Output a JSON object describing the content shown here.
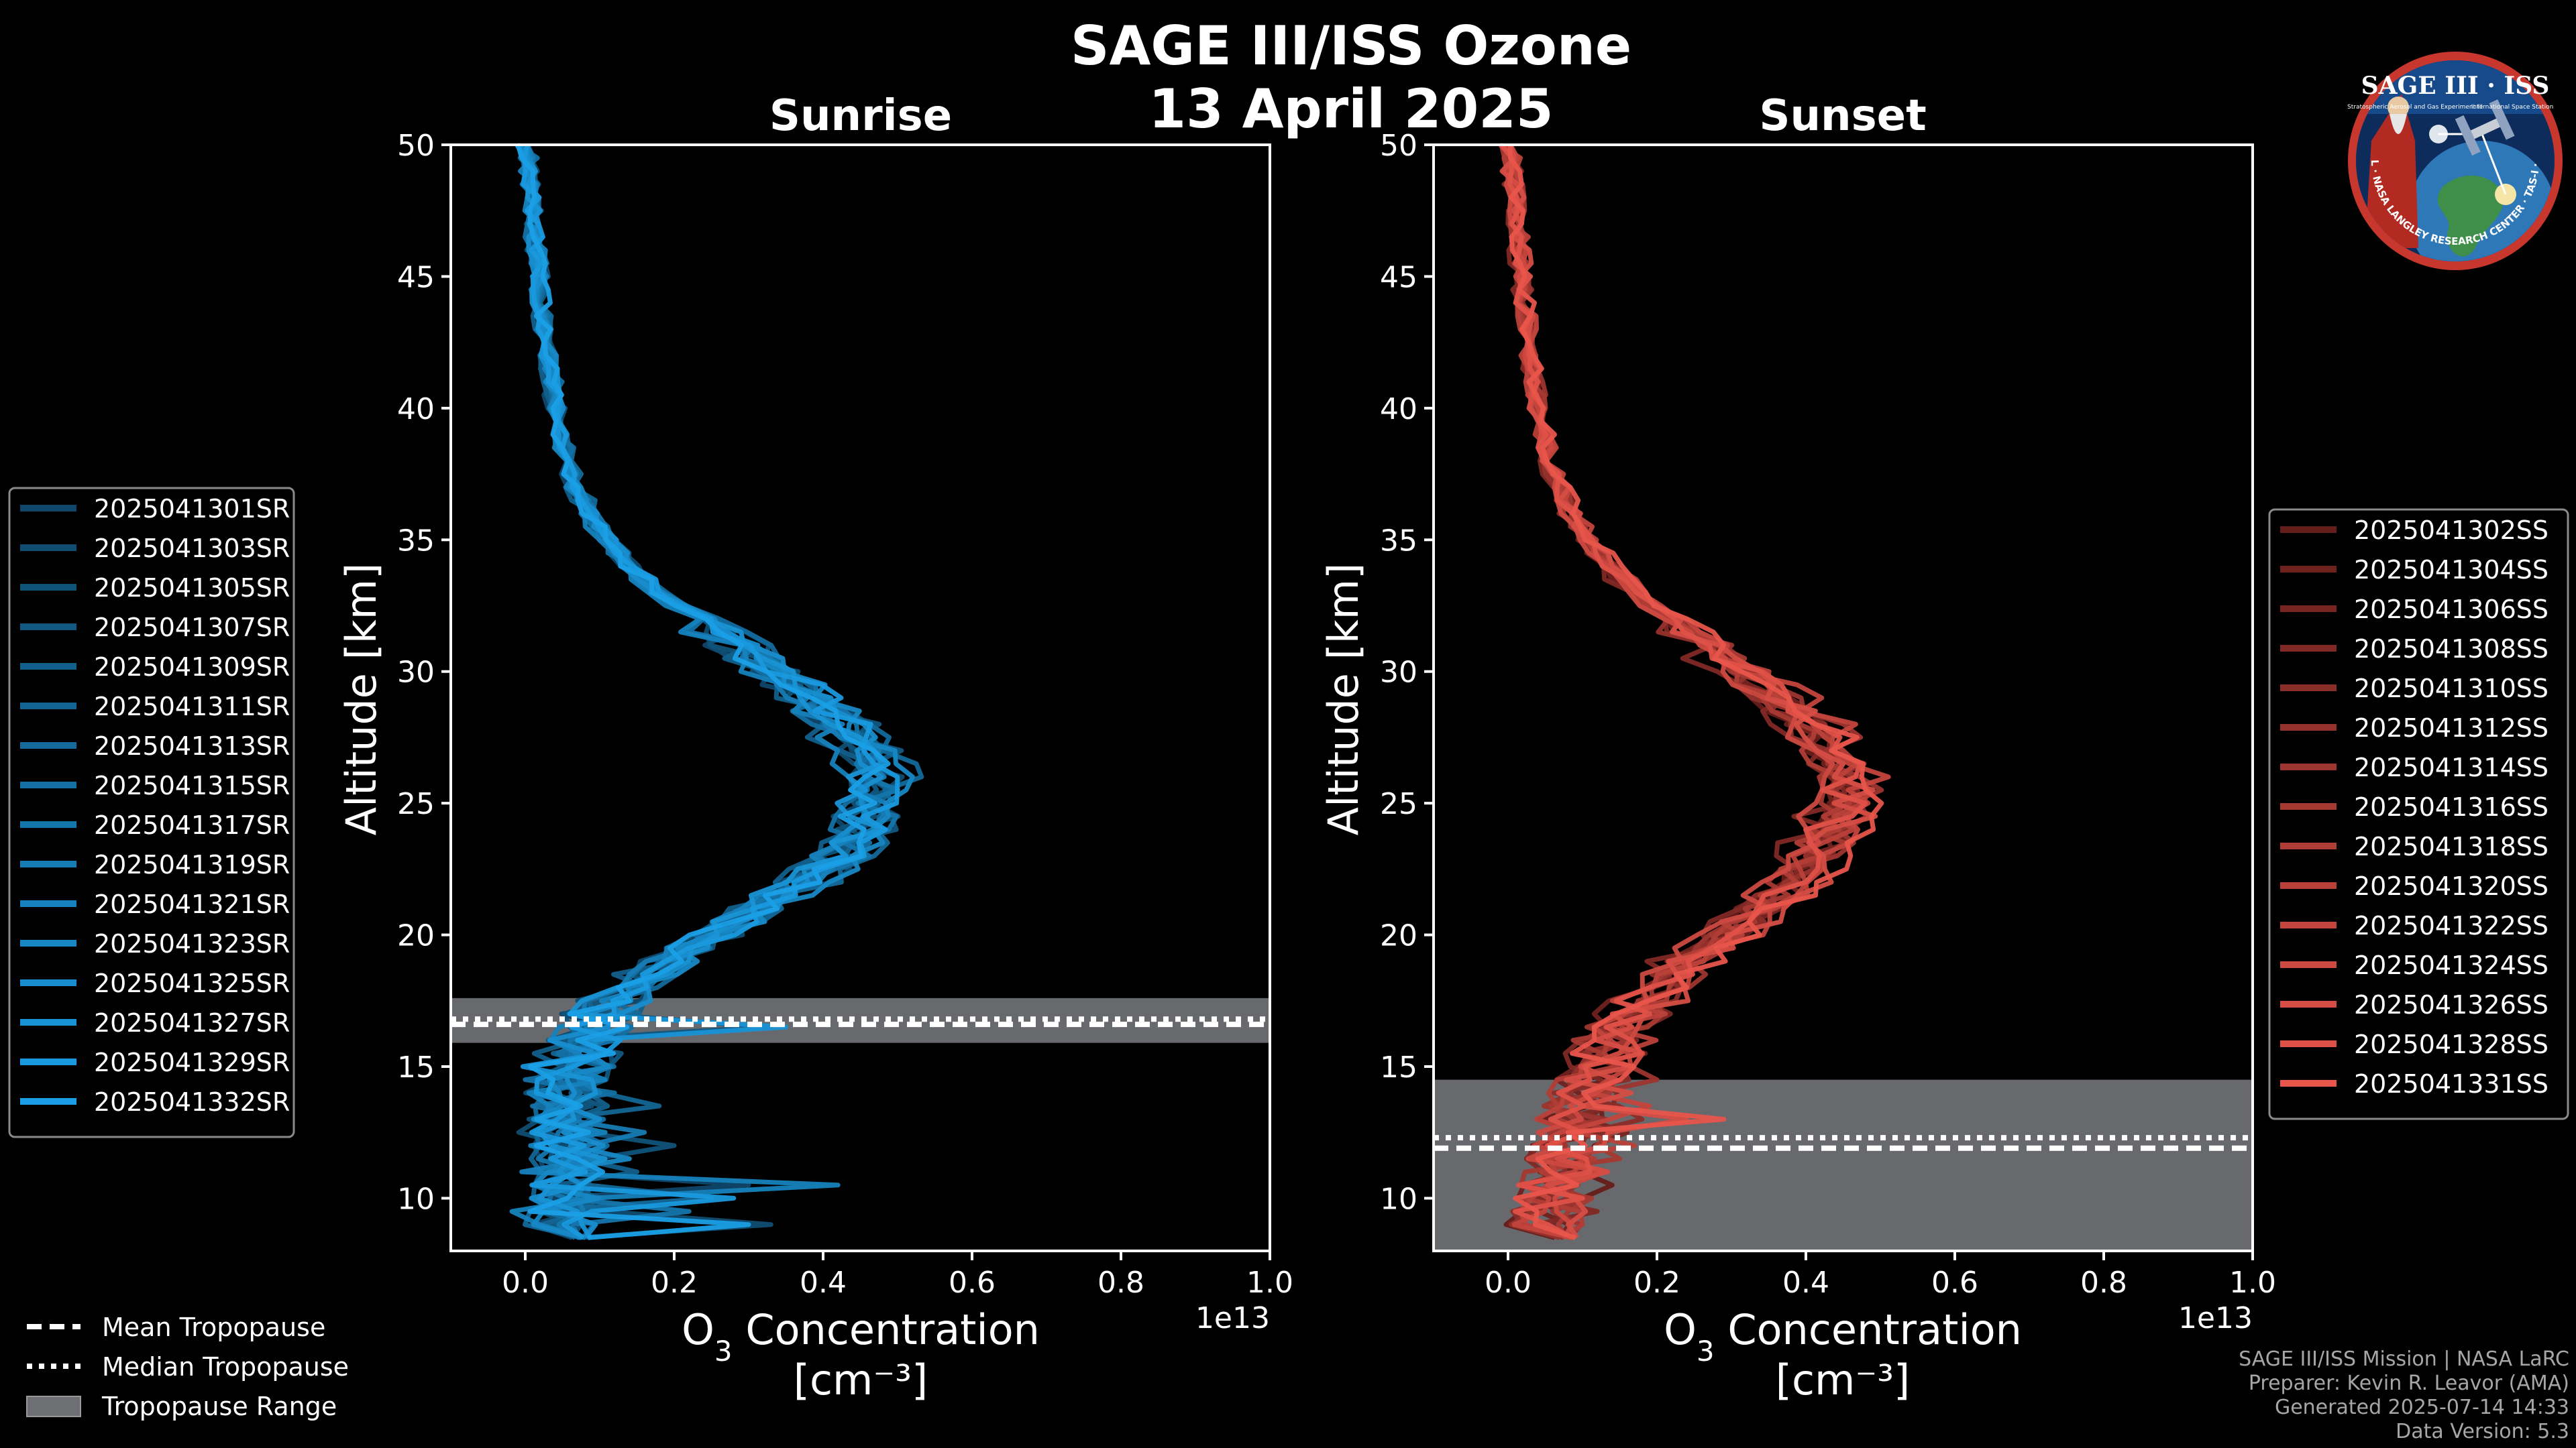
{
  "header": {
    "title": "SAGE III/ISS Ozone",
    "date": "13 April 2025"
  },
  "logo": {
    "title": "SAGE III · ISS",
    "ring_text": "BALL · NASA LANGLEY RESEARCH CENTER · TAS-I · ESA",
    "caption_left": "Stratospheric Aerosol and Gas Experiment III",
    "caption_right": "International Space Station"
  },
  "footer": {
    "lines": [
      "SAGE III/ISS Mission | NASA LaRC",
      "Preparer: Kevin R. Leavor (AMA)",
      "Generated 2025-07-14 14:33",
      "Data Version: 5.3"
    ]
  },
  "colors": {
    "sunrise": "#1a9fe6",
    "sunset": "#e8554b",
    "tropopause_range": "#6e6f73",
    "background": "#000000"
  },
  "chart_data": [
    {
      "type": "line",
      "title": "Sunrise",
      "xlabel": "O3 Concentration",
      "xunit": "[cm⁻³]",
      "ylabel": "Altitude [km]",
      "x_offset_label": "1e13",
      "xlim": [
        -0.1,
        1.0
      ],
      "ylim": [
        8,
        50
      ],
      "xticks": [
        0.0,
        0.2,
        0.4,
        0.6,
        0.8,
        1.0
      ],
      "xtick_labels": [
        "0.0",
        "0.2",
        "0.4",
        "0.6",
        "0.8",
        "1.0"
      ],
      "yticks": [
        10,
        15,
        20,
        25,
        30,
        35,
        40,
        45,
        50
      ],
      "tropopause": {
        "mean": 16.6,
        "median": 16.8,
        "range": [
          15.9,
          17.6
        ]
      },
      "base_profile": {
        "alt": [
          8.5,
          10,
          11,
          12,
          13,
          14,
          15,
          16,
          17,
          18,
          19,
          20,
          21,
          22,
          23,
          24,
          25,
          26,
          27,
          28,
          29,
          30,
          31,
          32,
          33,
          34,
          35,
          36,
          37,
          38,
          40,
          42,
          44,
          46,
          48,
          50
        ],
        "o3": [
          0.04,
          0.05,
          0.05,
          0.05,
          0.05,
          0.06,
          0.06,
          0.08,
          0.1,
          0.14,
          0.19,
          0.25,
          0.31,
          0.37,
          0.42,
          0.45,
          0.46,
          0.465,
          0.45,
          0.42,
          0.38,
          0.33,
          0.28,
          0.23,
          0.18,
          0.14,
          0.11,
          0.085,
          0.068,
          0.055,
          0.04,
          0.03,
          0.022,
          0.015,
          0.008,
          0.002
        ]
      },
      "legend_title_position": "outside-left",
      "series": [
        {
          "name": "2025041301SR",
          "scale": 0.97,
          "noise": 0.035,
          "spike": [
            10.5,
            0.3
          ]
        },
        {
          "name": "2025041303SR",
          "scale": 1.02,
          "noise": 0.04,
          "spike": [
            9.0,
            0.33
          ]
        },
        {
          "name": "2025041305SR",
          "scale": 0.99,
          "noise": 0.03,
          "spike": [
            12.0,
            0.2
          ]
        },
        {
          "name": "2025041307SR",
          "scale": 1.05,
          "noise": 0.035,
          "spike": [
            16.4,
            0.32
          ]
        },
        {
          "name": "2025041309SR",
          "scale": 0.95,
          "noise": 0.04,
          "spike": [
            11.0,
            0.15
          ]
        },
        {
          "name": "2025041311SR",
          "scale": 1.01,
          "noise": 0.03,
          "spike": [
            13.5,
            0.18
          ]
        },
        {
          "name": "2025041313SR",
          "scale": 1.08,
          "noise": 0.035,
          "spike": [
            10.2,
            0.25
          ]
        },
        {
          "name": "2025041315SR",
          "scale": 0.98,
          "noise": 0.04,
          "spike": [
            14.0,
            0.12
          ]
        },
        {
          "name": "2025041317SR",
          "scale": 1.03,
          "noise": 0.03,
          "spike": [
            9.5,
            0.22
          ]
        },
        {
          "name": "2025041319SR",
          "scale": 1.0,
          "noise": 0.035,
          "spike": [
            12.5,
            0.16
          ]
        },
        {
          "name": "2025041321SR",
          "scale": 0.96,
          "noise": 0.04,
          "spike": [
            10.6,
            0.42
          ]
        },
        {
          "name": "2025041323SR",
          "scale": 1.06,
          "noise": 0.03,
          "spike": [
            11.5,
            0.14
          ]
        },
        {
          "name": "2025041325SR",
          "scale": 1.02,
          "noise": 0.035,
          "spike": [
            13.0,
            0.1
          ]
        },
        {
          "name": "2025041327SR",
          "scale": 0.99,
          "noise": 0.04,
          "spike": [
            16.5,
            0.35
          ]
        },
        {
          "name": "2025041329SR",
          "scale": 1.04,
          "noise": 0.03,
          "spike": [
            9.8,
            0.28
          ]
        },
        {
          "name": "2025041332SR",
          "scale": 1.0,
          "noise": 0.035,
          "spike": [
            8.9,
            0.3
          ]
        }
      ]
    },
    {
      "type": "line",
      "title": "Sunset",
      "xlabel": "O3 Concentration",
      "xunit": "[cm⁻³]",
      "ylabel": "Altitude [km]",
      "x_offset_label": "1e13",
      "xlim": [
        -0.1,
        1.0
      ],
      "ylim": [
        8,
        50
      ],
      "xticks": [
        0.0,
        0.2,
        0.4,
        0.6,
        0.8,
        1.0
      ],
      "xtick_labels": [
        "0.0",
        "0.2",
        "0.4",
        "0.6",
        "0.8",
        "1.0"
      ],
      "yticks": [
        10,
        15,
        20,
        25,
        30,
        35,
        40,
        45,
        50
      ],
      "tropopause": {
        "mean": 11.9,
        "median": 12.3,
        "range": [
          8,
          14.5
        ]
      },
      "base_profile": {
        "alt": [
          8.5,
          10,
          11,
          12,
          13,
          14,
          15,
          16,
          17,
          18,
          19,
          20,
          21,
          22,
          23,
          24,
          25,
          26,
          27,
          28,
          29,
          30,
          31,
          32,
          33,
          34,
          35,
          36,
          37,
          38,
          40,
          42,
          44,
          46,
          48,
          50
        ],
        "o3": [
          0.04,
          0.06,
          0.07,
          0.08,
          0.09,
          0.1,
          0.12,
          0.14,
          0.17,
          0.2,
          0.24,
          0.29,
          0.34,
          0.38,
          0.41,
          0.43,
          0.45,
          0.45,
          0.43,
          0.4,
          0.36,
          0.31,
          0.26,
          0.21,
          0.17,
          0.135,
          0.105,
          0.085,
          0.068,
          0.055,
          0.04,
          0.03,
          0.022,
          0.015,
          0.008,
          0.002
        ]
      },
      "legend_title_position": "outside-right",
      "series": [
        {
          "name": "2025041302SS",
          "scale": 0.96,
          "noise": 0.03,
          "spike": [
            10.5,
            0.14
          ]
        },
        {
          "name": "2025041304SS",
          "scale": 1.0,
          "noise": 0.035,
          "spike": [
            11.0,
            0.1
          ]
        },
        {
          "name": "2025041306SS",
          "scale": 1.04,
          "noise": 0.03,
          "spike": [
            12.5,
            0.16
          ]
        },
        {
          "name": "2025041308SS",
          "scale": 0.94,
          "noise": 0.04,
          "spike": [
            9.5,
            0.12
          ]
        },
        {
          "name": "2025041310SS",
          "scale": 1.02,
          "noise": 0.035,
          "spike": [
            13.0,
            0.18
          ]
        },
        {
          "name": "2025041312SS",
          "scale": 0.98,
          "noise": 0.03,
          "spike": [
            10.0,
            0.08
          ]
        },
        {
          "name": "2025041314SS",
          "scale": 1.06,
          "noise": 0.04,
          "spike": [
            14.5,
            0.2
          ]
        },
        {
          "name": "2025041316SS",
          "scale": 1.0,
          "noise": 0.035,
          "spike": [
            11.5,
            0.15
          ]
        },
        {
          "name": "2025041318SS",
          "scale": 0.97,
          "noise": 0.03,
          "spike": [
            9.0,
            0.1
          ]
        },
        {
          "name": "2025041320SS",
          "scale": 1.03,
          "noise": 0.04,
          "spike": [
            12.0,
            0.17
          ]
        },
        {
          "name": "2025041322SS",
          "scale": 1.08,
          "noise": 0.035,
          "spike": [
            13.5,
            0.19
          ]
        },
        {
          "name": "2025041324SS",
          "scale": 0.95,
          "noise": 0.03,
          "spike": [
            10.8,
            0.13
          ]
        },
        {
          "name": "2025041326SS",
          "scale": 1.05,
          "noise": 0.04,
          "spike": [
            12.8,
            0.24
          ]
        },
        {
          "name": "2025041328SS",
          "scale": 1.01,
          "noise": 0.035,
          "spike": [
            11.2,
            0.11
          ]
        },
        {
          "name": "2025041331SS",
          "scale": 1.09,
          "noise": 0.035,
          "spike": [
            13.0,
            0.29
          ]
        }
      ]
    }
  ],
  "common_legend": {
    "mean": "Mean Tropopause",
    "median": "Median Tropopause",
    "range": "Tropopause Range"
  }
}
